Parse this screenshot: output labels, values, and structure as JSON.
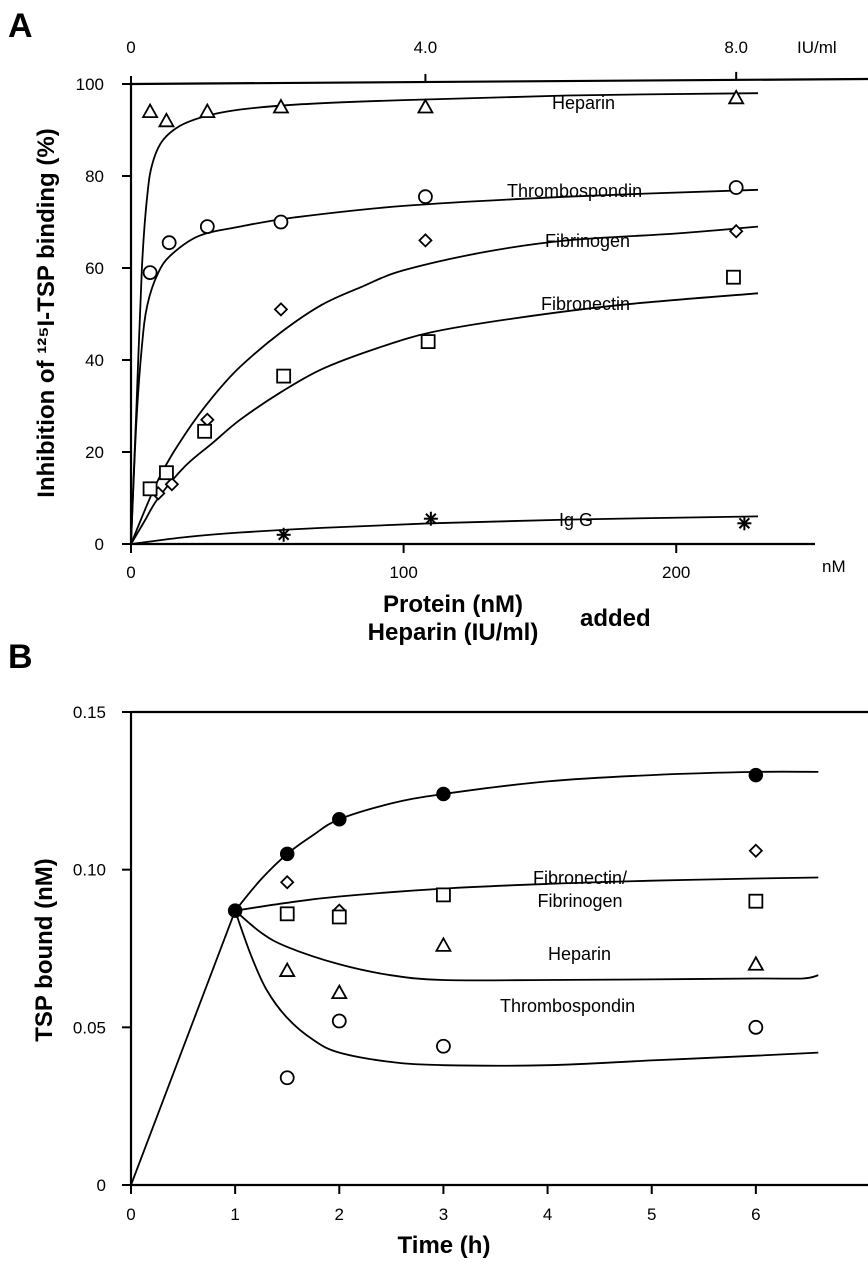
{
  "chart_data": [
    {
      "panel": "A",
      "type": "scatter",
      "xlabel_lines": [
        "Protein (nM)",
        "Heparin (IU/ml)"
      ],
      "xlabel_suffix": "added",
      "ylabel": "Inhibition of ¹²⁵I-TSP binding (%)",
      "xlim": [
        0,
        230
      ],
      "ylim": [
        0,
        100
      ],
      "x_ticks": [
        0,
        100,
        200
      ],
      "x_unit": "nM",
      "y_ticks": [
        0,
        20,
        40,
        60,
        80,
        100
      ],
      "top_axis": {
        "ticks": [
          "0",
          "4.0",
          "8.0"
        ],
        "unit": "IU/ml"
      },
      "grid": false,
      "series": [
        {
          "name": "Heparin",
          "marker": "triangle",
          "points": [
            [
              7,
              94
            ],
            [
              13,
              92
            ],
            [
              28,
              94
            ],
            [
              55,
              95
            ],
            [
              108,
              95
            ],
            [
              222,
              97
            ]
          ],
          "fit": [
            [
              0,
              0
            ],
            [
              2,
              30
            ],
            [
              4,
              60
            ],
            [
              6,
              76
            ],
            [
              8,
              83
            ],
            [
              12,
              88
            ],
            [
              20,
              91.5
            ],
            [
              35,
              94
            ],
            [
              60,
              95.5
            ],
            [
              100,
              96.5
            ],
            [
              160,
              97.5
            ],
            [
              230,
              98
            ]
          ]
        },
        {
          "name": "Thrombospondin",
          "marker": "circle",
          "points": [
            [
              7,
              59
            ],
            [
              14,
              65.5
            ],
            [
              28,
              69
            ],
            [
              55,
              70
            ],
            [
              108,
              75.5
            ],
            [
              222,
              77.5
            ]
          ],
          "fit": [
            [
              0,
              0
            ],
            [
              2,
              27
            ],
            [
              4,
              43
            ],
            [
              6,
              52
            ],
            [
              10,
              59
            ],
            [
              15,
              63
            ],
            [
              25,
              67
            ],
            [
              40,
              69
            ],
            [
              60,
              71
            ],
            [
              100,
              73.5
            ],
            [
              160,
              75.5
            ],
            [
              230,
              77
            ]
          ]
        },
        {
          "name": "Fibrinogen",
          "marker": "diamond",
          "points": [
            [
              10,
              11
            ],
            [
              15,
              13
            ],
            [
              28,
              27
            ],
            [
              55,
              51
            ],
            [
              108,
              66
            ],
            [
              222,
              68
            ]
          ],
          "fit": [
            [
              0,
              0
            ],
            [
              10,
              14
            ],
            [
              20,
              24
            ],
            [
              30,
              32
            ],
            [
              40,
              38.5
            ],
            [
              55,
              46
            ],
            [
              70,
              52
            ],
            [
              85,
              56
            ],
            [
              100,
              59.5
            ],
            [
              130,
              63.5
            ],
            [
              160,
              66
            ],
            [
              200,
              67.5
            ],
            [
              230,
              69
            ]
          ]
        },
        {
          "name": "Fibronectin",
          "marker": "square",
          "points": [
            [
              7,
              12
            ],
            [
              13,
              15.5
            ],
            [
              27,
              24.5
            ],
            [
              56,
              36.5
            ],
            [
              109,
              44
            ],
            [
              221,
              58
            ]
          ],
          "fit": [
            [
              0,
              0
            ],
            [
              5,
              5
            ],
            [
              10,
              10
            ],
            [
              20,
              17
            ],
            [
              30,
              22
            ],
            [
              40,
              27
            ],
            [
              55,
              33
            ],
            [
              70,
              38
            ],
            [
              90,
              42.5
            ],
            [
              110,
              46
            ],
            [
              140,
              49
            ],
            [
              180,
              52
            ],
            [
              230,
              54.5
            ]
          ]
        },
        {
          "name": "Ig G",
          "marker": "asterisk",
          "points": [
            [
              56,
              2
            ],
            [
              110,
              5.5
            ],
            [
              225,
              4.5
            ]
          ],
          "fit": [
            [
              0,
              0
            ],
            [
              20,
              1.5
            ],
            [
              40,
              2.5
            ],
            [
              70,
              3.5
            ],
            [
              110,
              4.5
            ],
            [
              160,
              5.3
            ],
            [
              230,
              6
            ]
          ]
        }
      ]
    },
    {
      "panel": "B",
      "type": "scatter",
      "xlabel": "Time (h)",
      "ylabel": "TSP bound (nM)",
      "xlim": [
        0,
        7
      ],
      "ylim": [
        0,
        0.15
      ],
      "x_ticks": [
        0,
        1,
        2,
        3,
        4,
        5,
        6
      ],
      "x_tick_labels": [
        "0",
        "1",
        "2",
        "3",
        "4",
        "5",
        "6"
      ],
      "y_ticks": [
        0,
        0.05,
        0.1,
        0.15
      ],
      "y_tick_labels": [
        "0",
        "0.05",
        "0.10",
        "0.15"
      ],
      "grid": false,
      "series": [
        {
          "name": "",
          "marker": "filled-circle",
          "points": [
            [
              1,
              0.087
            ],
            [
              1.5,
              0.105
            ],
            [
              2,
              0.116
            ],
            [
              3,
              0.124
            ],
            [
              6,
              0.13
            ]
          ],
          "fit": [
            [
              1,
              0.087
            ],
            [
              1.25,
              0.097
            ],
            [
              1.5,
              0.105
            ],
            [
              1.75,
              0.111
            ],
            [
              2,
              0.116
            ],
            [
              2.5,
              0.121
            ],
            [
              3,
              0.124
            ],
            [
              4,
              0.128
            ],
            [
              5,
              0.13
            ],
            [
              6,
              0.131
            ],
            [
              6.6,
              0.131
            ]
          ]
        },
        {
          "name": "Fibronectin/ Fibrinogen",
          "marker": "diamond",
          "points": [
            [
              1.5,
              0.096
            ],
            [
              2,
              0.087
            ],
            [
              6,
              0.106
            ]
          ]
        },
        {
          "name": "",
          "marker": "square",
          "points": [
            [
              1.5,
              0.086
            ],
            [
              2,
              0.085
            ],
            [
              3,
              0.092
            ],
            [
              6,
              0.09
            ]
          ],
          "fit": [
            [
              1,
              0.087
            ],
            [
              1.5,
              0.0895
            ],
            [
              2,
              0.0915
            ],
            [
              3,
              0.094
            ],
            [
              4,
              0.0955
            ],
            [
              5,
              0.0965
            ],
            [
              6,
              0.0972
            ],
            [
              6.6,
              0.0975
            ]
          ]
        },
        {
          "name": "Heparin",
          "marker": "triangle",
          "points": [
            [
              1.5,
              0.068
            ],
            [
              2,
              0.061
            ],
            [
              3,
              0.076
            ],
            [
              6,
              0.07
            ]
          ],
          "fit": [
            [
              1,
              0.087
            ],
            [
              1.25,
              0.08
            ],
            [
              1.5,
              0.0755
            ],
            [
              2,
              0.07
            ],
            [
              2.5,
              0.0665
            ],
            [
              3,
              0.065
            ],
            [
              4,
              0.065
            ],
            [
              5,
              0.0652
            ],
            [
              6,
              0.0655
            ],
            [
              6.45,
              0.0655
            ],
            [
              6.6,
              0.0665
            ]
          ]
        },
        {
          "name": "Thrombospondin",
          "marker": "circle",
          "points": [
            [
              1.5,
              0.034
            ],
            [
              2,
              0.052
            ],
            [
              3,
              0.044
            ],
            [
              6,
              0.05
            ]
          ],
          "fit": [
            [
              1,
              0.087
            ],
            [
              1.15,
              0.073
            ],
            [
              1.3,
              0.062
            ],
            [
              1.5,
              0.053
            ],
            [
              1.75,
              0.046
            ],
            [
              2,
              0.042
            ],
            [
              2.5,
              0.039
            ],
            [
              3,
              0.038
            ],
            [
              4,
              0.038
            ],
            [
              5,
              0.0395
            ],
            [
              6,
              0.041
            ],
            [
              6.6,
              0.042
            ]
          ]
        }
      ]
    }
  ]
}
